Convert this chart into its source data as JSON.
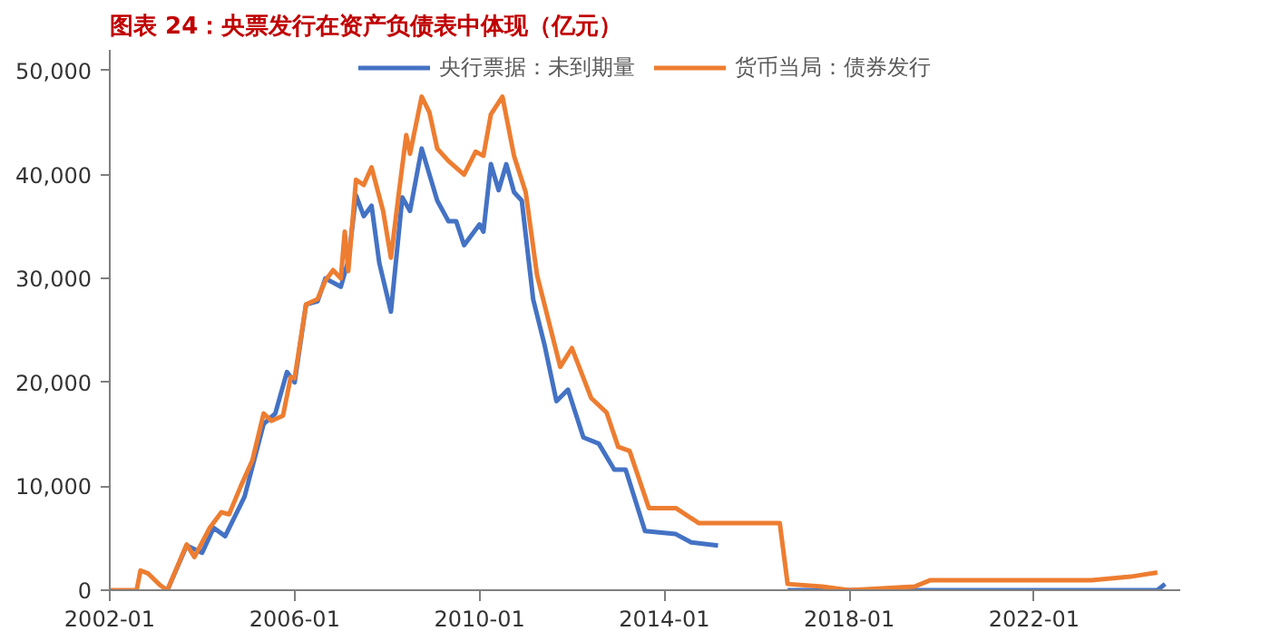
{
  "chart_data": {
    "type": "line",
    "title": "图表 24：央票发行在资产负债表中体现（亿元）",
    "series": [
      {
        "name": "央行票据：未到期量",
        "color": "#4472c4",
        "x": [
          "2003-04",
          "2003-09",
          "2004-01",
          "2004-04",
          "2004-07",
          "2004-12",
          "2005-05",
          "2005-08",
          "2005-11",
          "2006-01",
          "2006-04",
          "2006-07",
          "2006-09",
          "2007-01",
          "2007-03",
          "2007-05",
          "2007-07",
          "2007-09",
          "2007-11",
          "2008-02",
          "2008-05",
          "2008-07",
          "2008-10",
          "2009-02",
          "2009-05",
          "2009-07",
          "2009-09",
          "2010-01",
          "2010-02",
          "2010-04",
          "2010-06",
          "2010-08",
          "2010-10",
          "2010-12",
          "2011-03",
          "2011-06",
          "2011-09",
          "2011-12",
          "2012-04",
          "2012-08",
          "2012-12",
          "2013-03",
          "2013-08",
          "2014-04",
          "2014-08",
          "2015-03",
          "2015-04",
          "2016-09",
          "2024-09",
          "2024-11"
        ],
        "values": [
          0,
          4300,
          3600,
          6000,
          5200,
          9000,
          16000,
          17000,
          21000,
          20000,
          27500,
          27800,
          30000,
          29200,
          31700,
          38000,
          36000,
          37000,
          31500,
          26800,
          37800,
          36500,
          42500,
          37500,
          35500,
          35500,
          33200,
          35200,
          34500,
          41000,
          38500,
          41000,
          38300,
          37500,
          28000,
          23500,
          18200,
          19300,
          14700,
          14100,
          11600,
          11600,
          5700,
          5400,
          4600,
          4300,
          null,
          0,
          0,
          600
        ]
      },
      {
        "name": "货币当局：债券发行",
        "color": "#ed7d31",
        "x": [
          "2002-01",
          "2002-08",
          "2002-09",
          "2002-11",
          "2003-02",
          "2003-04",
          "2003-09",
          "2003-11",
          "2004-03",
          "2004-06",
          "2004-08",
          "2004-11",
          "2005-02",
          "2005-05",
          "2005-07",
          "2005-10",
          "2005-12",
          "2006-01",
          "2006-04",
          "2006-07",
          "2006-09",
          "2006-11",
          "2007-01",
          "2007-02",
          "2007-03",
          "2007-05",
          "2007-07",
          "2007-09",
          "2007-12",
          "2008-02",
          "2008-04",
          "2008-06",
          "2008-07",
          "2008-10",
          "2008-12",
          "2009-02",
          "2009-05",
          "2009-09",
          "2009-12",
          "2010-02",
          "2010-04",
          "2010-07",
          "2010-10",
          "2011-01",
          "2011-04",
          "2011-10",
          "2012-01",
          "2012-06",
          "2012-10",
          "2013-01",
          "2013-04",
          "2013-09",
          "2014-04",
          "2014-10",
          "2016-07",
          "2016-09",
          "2017-06",
          "2018-01",
          "2019-06",
          "2019-10",
          "2023-04",
          "2024-02",
          "2024-09"
        ],
        "values": [
          0,
          0,
          1900,
          1600,
          500,
          0,
          4400,
          3200,
          6000,
          7500,
          7300,
          10000,
          12500,
          17000,
          16300,
          16800,
          20500,
          20400,
          27500,
          28000,
          29800,
          30800,
          30000,
          34500,
          30700,
          39500,
          39000,
          40700,
          36500,
          32000,
          38000,
          43800,
          42000,
          47500,
          46000,
          42500,
          41300,
          40000,
          42200,
          41800,
          45800,
          47500,
          41800,
          38300,
          30300,
          21500,
          23300,
          18500,
          17100,
          13800,
          13400,
          7900,
          7900,
          6450,
          6450,
          600,
          350,
          0,
          350,
          950,
          950,
          1300,
          1700
        ]
      }
    ],
    "xlim": [
      "2002-01",
      "2025-03"
    ],
    "xticks": [
      "2002-01",
      "2006-01",
      "2010-01",
      "2014-01",
      "2018-01",
      "2022-01"
    ],
    "ylim": [
      0,
      52000
    ],
    "yticks": [
      0,
      {
        "value": 10000,
        "label": "10,000"
      },
      {
        "value": 20000,
        "label": "20,000"
      },
      {
        "value": 30000,
        "label": "30,000"
      },
      {
        "value": 40000,
        "label": "40,000"
      },
      {
        "value": 50000,
        "label": "50,000"
      }
    ],
    "grid": false,
    "legend": "top",
    "line_style": "solid",
    "marker": "none"
  }
}
